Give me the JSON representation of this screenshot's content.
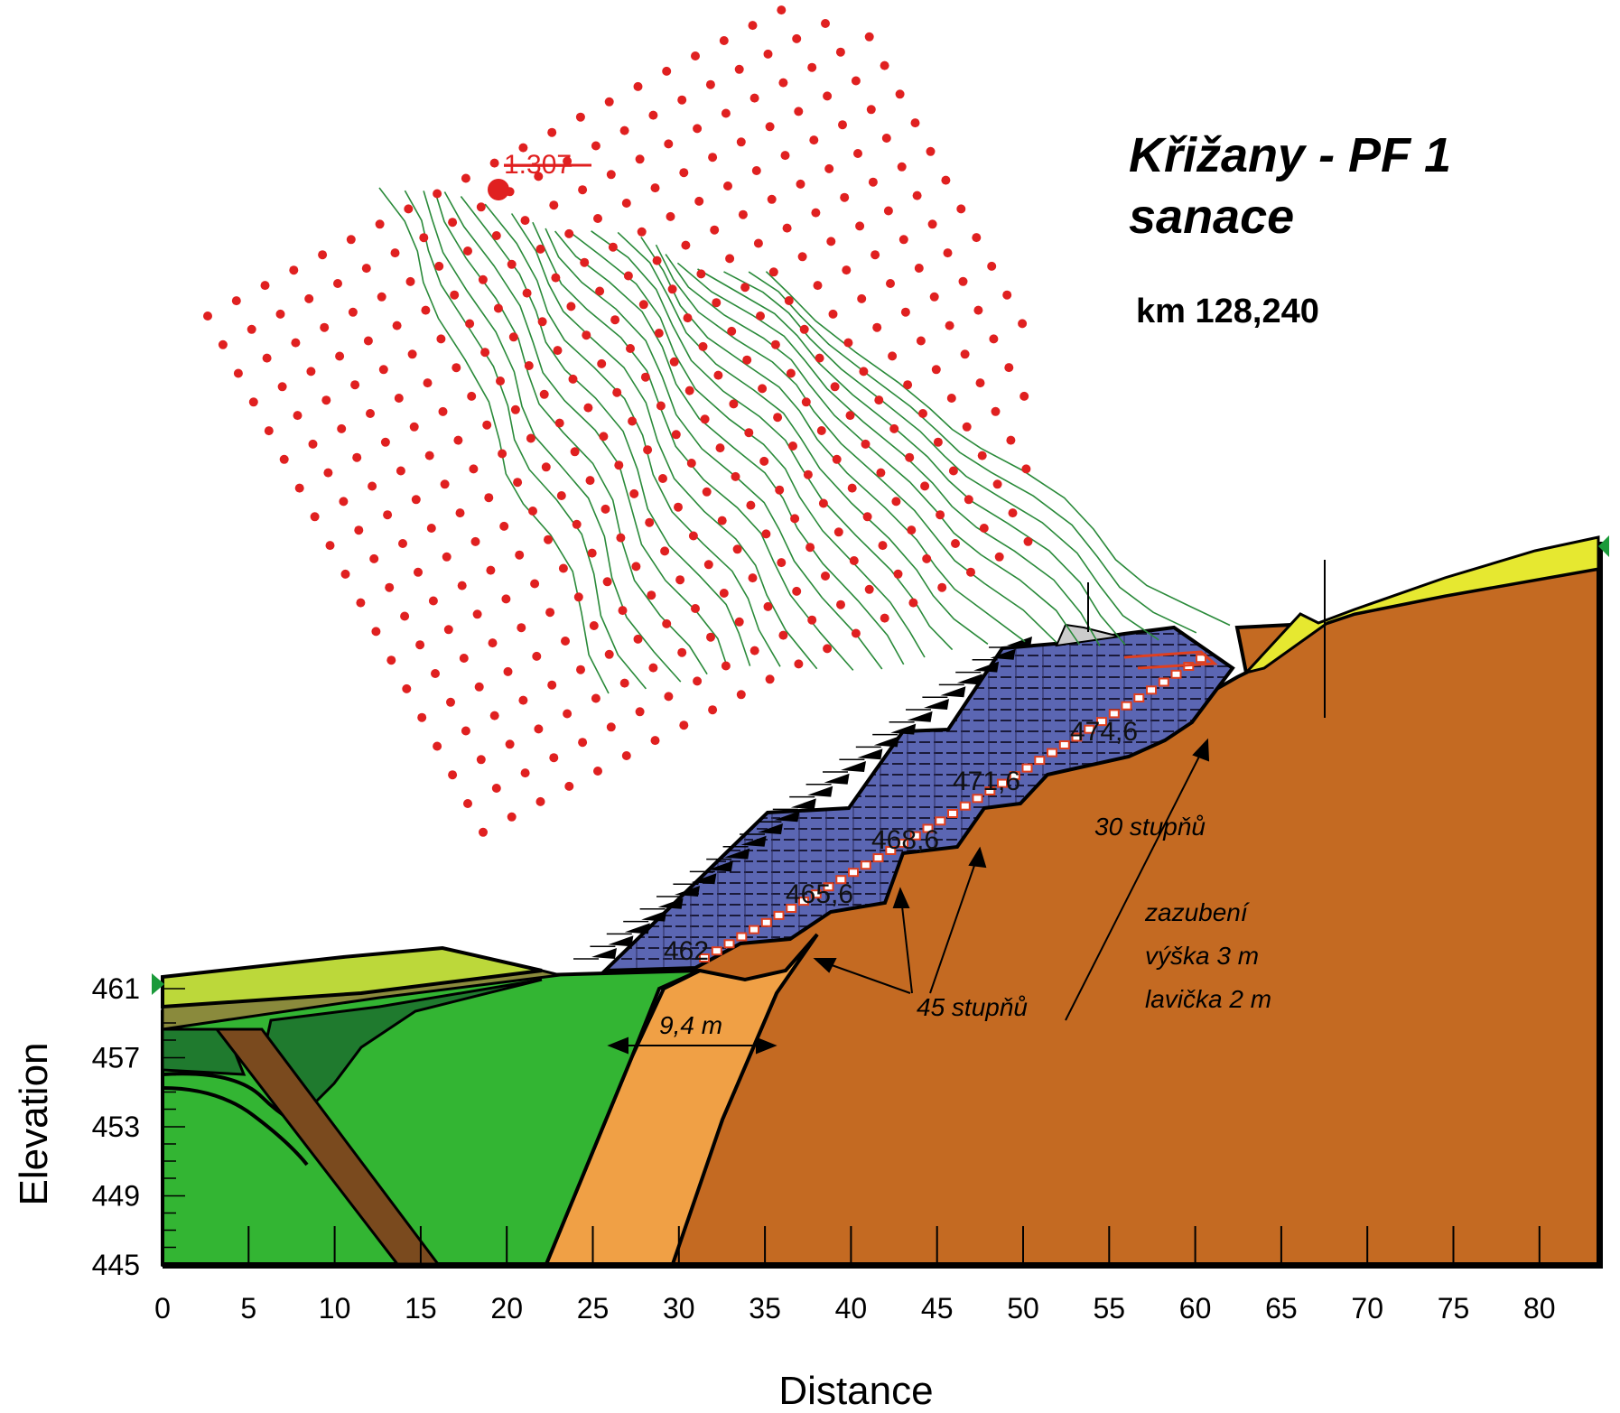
{
  "title": {
    "line1": "Křižany - PF 1",
    "line2": "sanace",
    "km": "km 128,240"
  },
  "axes": {
    "x_label": "Distance",
    "y_label": "Elevation",
    "x_ticks": [
      "0",
      "5",
      "10",
      "15",
      "20",
      "25",
      "30",
      "35",
      "40",
      "45",
      "50",
      "55",
      "60",
      "65",
      "70",
      "75",
      "80"
    ],
    "y_ticks": [
      "461",
      "457",
      "453",
      "449",
      "445"
    ]
  },
  "annotations": {
    "factor_of_safety": "1.307",
    "width_dim": "9,4 m",
    "angle_45": "45 stupňů",
    "angle_30": "30 stupňů",
    "note1": "zazubení",
    "note2": "výška 3 m",
    "note3": "lavička 2 m"
  },
  "layer_elevations": [
    "462",
    "465,6",
    "468,6",
    "471,6",
    "474,6"
  ],
  "colors": {
    "surface_lightgreen": "#bcd83a",
    "olive": "#8a8a3c",
    "darkgreen": "#1f7a2e",
    "green": "#33b533",
    "fault_brown": "#7a4a1e",
    "sand_orange": "#f0a045",
    "bedrock_orange": "#c46a22",
    "fill_blue": "#5b66b3",
    "grid_dots": "#e02020",
    "contours": "#2a8a3a",
    "yellow": "#e6e830"
  }
}
